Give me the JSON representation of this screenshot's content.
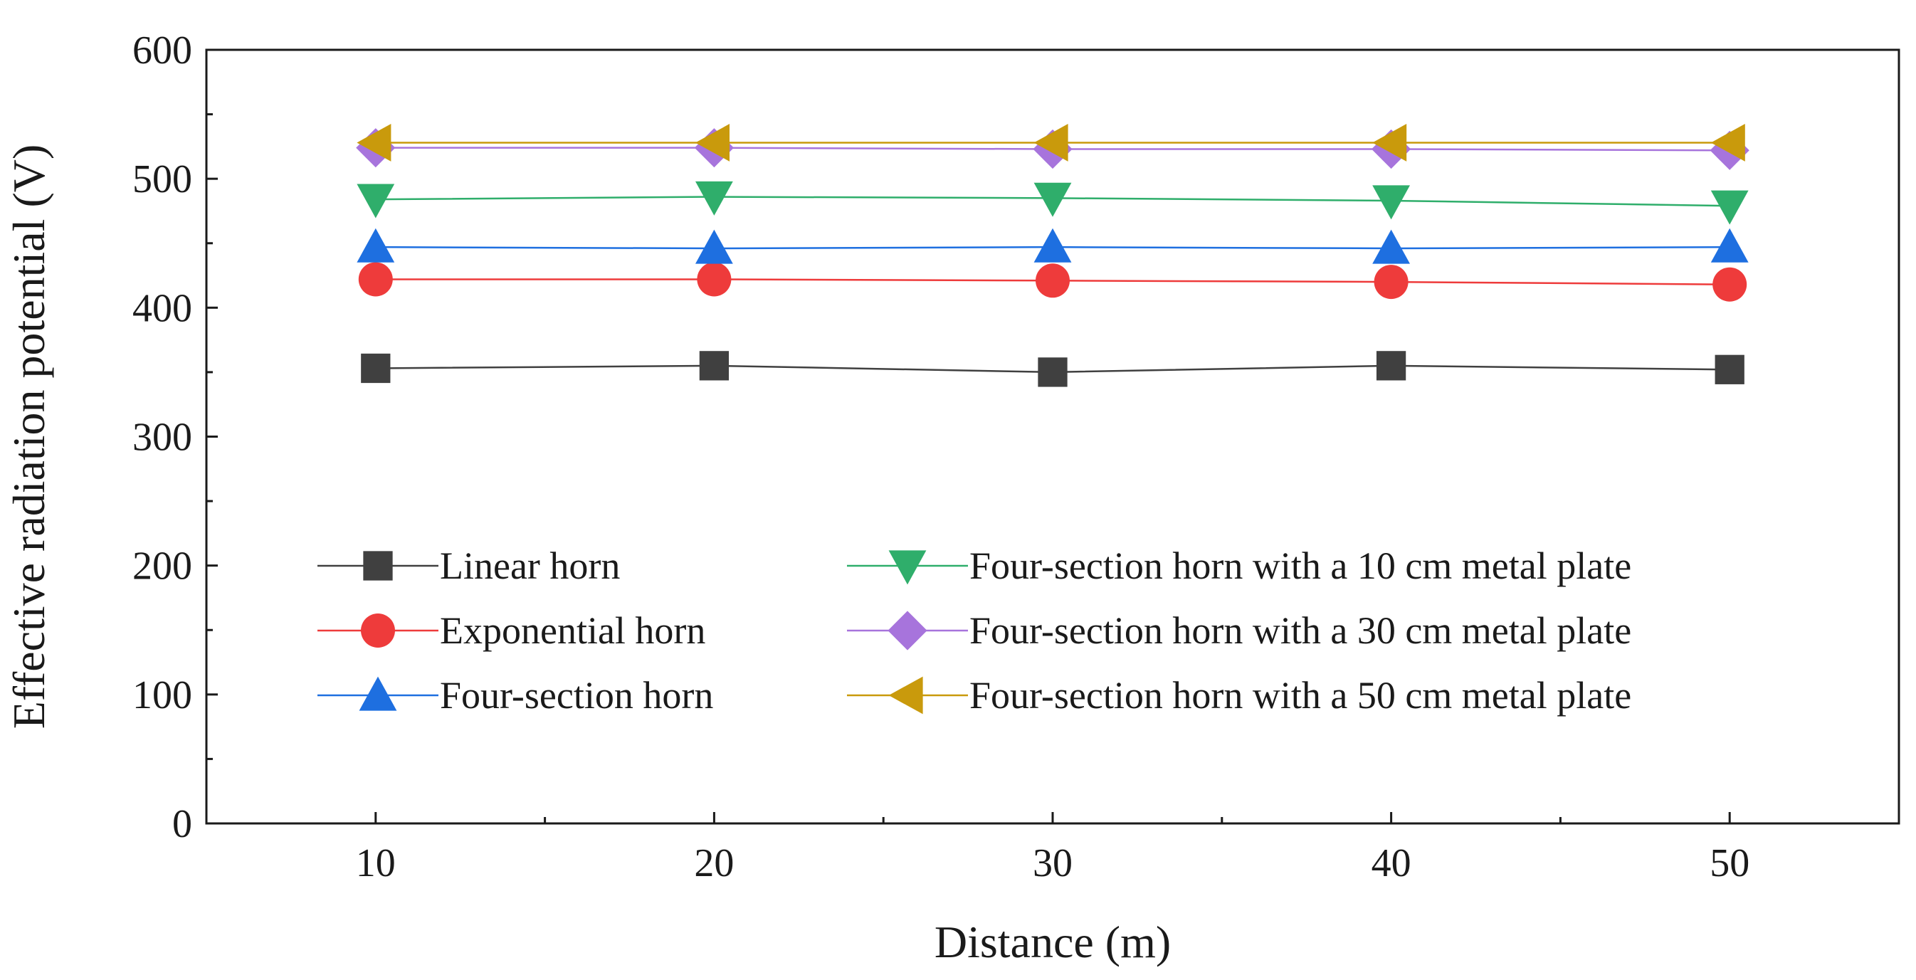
{
  "chart_data": {
    "type": "line",
    "title": "",
    "xlabel": "Distance (m)",
    "ylabel": "Effective radiation potential (V)",
    "x": [
      10,
      20,
      30,
      40,
      50
    ],
    "xlim": [
      5,
      55
    ],
    "ylim": [
      0,
      600
    ],
    "xticks": [
      "10",
      "20",
      "30",
      "40",
      "50"
    ],
    "yticks": [
      "0",
      "100",
      "200",
      "300",
      "400",
      "500",
      "600"
    ],
    "grid": false,
    "legend_position": "lower-center",
    "series": [
      {
        "name": "Linear horn",
        "color": "#404040",
        "marker": "square",
        "values": [
          353,
          355,
          350,
          355,
          352
        ]
      },
      {
        "name": "Exponential horn",
        "color": "#ee3b3b",
        "marker": "circle",
        "values": [
          422,
          422,
          421,
          420,
          418
        ]
      },
      {
        "name": "Four-section horn",
        "color": "#1e6fe0",
        "marker": "triangle-up",
        "values": [
          447,
          446,
          447,
          446,
          447
        ]
      },
      {
        "name": "Four-section horn with a 10 cm metal plate",
        "color": "#2fae6b",
        "marker": "triangle-down",
        "values": [
          484,
          486,
          485,
          483,
          479
        ]
      },
      {
        "name": "Four-section horn with a 30 cm metal plate",
        "color": "#a774dc",
        "marker": "diamond",
        "values": [
          524,
          524,
          523,
          523,
          522
        ]
      },
      {
        "name": "Four-section horn with a 50 cm metal plate",
        "color": "#c99a0c",
        "marker": "triangle-left",
        "values": [
          528,
          528,
          528,
          528,
          528
        ]
      }
    ]
  }
}
